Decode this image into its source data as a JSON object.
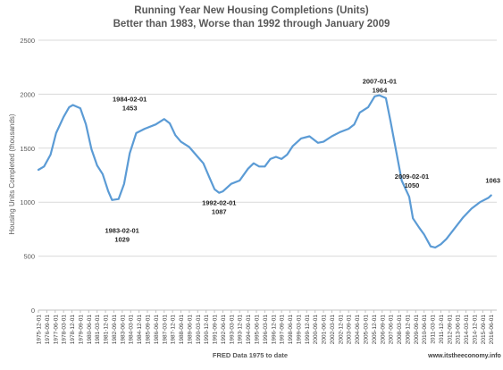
{
  "chart_data": {
    "type": "line",
    "title": "Running Year New Housing Completions (Units)",
    "subtitle": "Better than 1983, Worse than 1992  through January 2009",
    "ylabel": "Housing Units Completed (thousands)",
    "xlabel": "FRED Data 1975 to date",
    "source": "www.itstheeconomy.info",
    "ylim": [
      0,
      2500
    ],
    "yticks": [
      0,
      500,
      1000,
      1500,
      2000,
      2500
    ],
    "xlim": [
      "1975-12-01",
      "2016-12-01"
    ],
    "grid": true,
    "x_tick_labels": [
      "1975-12-01",
      "1976-09-01",
      "1977-06-01",
      "1978-03-01",
      "1978-12-01",
      "1979-09-01",
      "1980-06-01",
      "1981-03-01",
      "1981-12-01",
      "1982-09-01",
      "1983-06-01",
      "1984-03-01",
      "1984-12-01",
      "1985-09-01",
      "1986-06-01",
      "1987-03-01",
      "1987-12-01",
      "1988-09-01",
      "1989-06-01",
      "1990-03-01",
      "1990-12-01",
      "1991-09-01",
      "1992-06-01",
      "1993-03-01",
      "1993-12-01",
      "1994-09-01",
      "1995-06-01",
      "1996-03-01",
      "1996-12-01",
      "1997-09-01",
      "1998-06-01",
      "1999-03-01",
      "1999-12-01",
      "2000-09-01",
      "2001-06-01",
      "2002-03-01",
      "2002-12-01",
      "2003-09-01",
      "2004-06-01",
      "2005-03-01",
      "2005-12-01",
      "2006-09-01",
      "2007-06-01",
      "2008-03-01",
      "2008-12-01",
      "2009-09-01",
      "2010-06-01",
      "2011-03-01",
      "2011-12-01",
      "2012-09-01",
      "2013-06-01",
      "2014-03-01",
      "2014-12-01",
      "2015-09-01",
      "2016-06-01"
    ],
    "series": [
      {
        "name": "",
        "color": "#5b9bd5",
        "points": [
          [
            "1975-12-01",
            1300
          ],
          [
            "1976-06-01",
            1330
          ],
          [
            "1977-01-01",
            1440
          ],
          [
            "1977-07-01",
            1640
          ],
          [
            "1978-03-01",
            1790
          ],
          [
            "1978-09-01",
            1880
          ],
          [
            "1979-01-01",
            1900
          ],
          [
            "1979-09-01",
            1870
          ],
          [
            "1980-03-01",
            1720
          ],
          [
            "1980-09-01",
            1490
          ],
          [
            "1981-03-01",
            1340
          ],
          [
            "1981-09-01",
            1260
          ],
          [
            "1982-03-01",
            1100
          ],
          [
            "1982-07-01",
            1020
          ],
          [
            "1983-02-01",
            1029
          ],
          [
            "1983-08-01",
            1170
          ],
          [
            "1984-02-01",
            1453
          ],
          [
            "1984-09-01",
            1640
          ],
          [
            "1985-06-01",
            1680
          ],
          [
            "1986-06-01",
            1720
          ],
          [
            "1987-03-01",
            1770
          ],
          [
            "1987-09-01",
            1730
          ],
          [
            "1988-03-01",
            1620
          ],
          [
            "1988-09-01",
            1560
          ],
          [
            "1989-06-01",
            1510
          ],
          [
            "1990-03-01",
            1420
          ],
          [
            "1990-09-01",
            1360
          ],
          [
            "1991-03-01",
            1240
          ],
          [
            "1991-09-01",
            1120
          ],
          [
            "1992-02-01",
            1087
          ],
          [
            "1992-06-01",
            1100
          ],
          [
            "1993-03-01",
            1170
          ],
          [
            "1993-12-01",
            1200
          ],
          [
            "1994-09-01",
            1310
          ],
          [
            "1995-03-01",
            1360
          ],
          [
            "1995-09-01",
            1330
          ],
          [
            "1996-03-01",
            1330
          ],
          [
            "1996-09-01",
            1400
          ],
          [
            "1997-03-01",
            1420
          ],
          [
            "1997-09-01",
            1400
          ],
          [
            "1998-03-01",
            1440
          ],
          [
            "1998-09-01",
            1520
          ],
          [
            "1999-06-01",
            1590
          ],
          [
            "2000-03-01",
            1610
          ],
          [
            "2000-12-01",
            1550
          ],
          [
            "2001-06-01",
            1560
          ],
          [
            "2002-03-01",
            1610
          ],
          [
            "2002-12-01",
            1650
          ],
          [
            "2003-09-01",
            1680
          ],
          [
            "2004-03-01",
            1720
          ],
          [
            "2004-09-01",
            1830
          ],
          [
            "2005-06-01",
            1880
          ],
          [
            "2006-01-01",
            1980
          ],
          [
            "2006-06-01",
            1990
          ],
          [
            "2007-01-01",
            1964
          ],
          [
            "2007-06-01",
            1750
          ],
          [
            "2008-01-01",
            1430
          ],
          [
            "2008-06-01",
            1200
          ],
          [
            "2009-02-01",
            1050
          ],
          [
            "2009-06-01",
            850
          ],
          [
            "2010-01-01",
            760
          ],
          [
            "2010-06-01",
            700
          ],
          [
            "2011-01-01",
            590
          ],
          [
            "2011-06-01",
            580
          ],
          [
            "2011-12-01",
            610
          ],
          [
            "2012-06-01",
            660
          ],
          [
            "2013-03-01",
            760
          ],
          [
            "2013-12-01",
            860
          ],
          [
            "2014-09-01",
            940
          ],
          [
            "2015-06-01",
            1000
          ],
          [
            "2016-03-01",
            1040
          ],
          [
            "2016-06-01",
            1063
          ]
        ]
      }
    ],
    "annotations": [
      {
        "date_text": "1983-02-01",
        "value_text": "1029",
        "x": "1983-02-01",
        "y": 1029
      },
      {
        "date_text": "1984-02-01",
        "value_text": "1453",
        "x": "1984-02-01",
        "y": 1453
      },
      {
        "date_text": "1992-02-01",
        "value_text": "1087",
        "x": "1992-02-01",
        "y": 1087
      },
      {
        "date_text": "2007-01-01",
        "value_text": "1964",
        "x": "2007-01-01",
        "y": 1964
      },
      {
        "date_text": "2009-02-01",
        "value_text": "1050",
        "x": "2009-02-01",
        "y": 1050
      },
      {
        "date_text": "",
        "value_text": "1063",
        "x": "2016-06-01",
        "y": 1063
      }
    ]
  }
}
